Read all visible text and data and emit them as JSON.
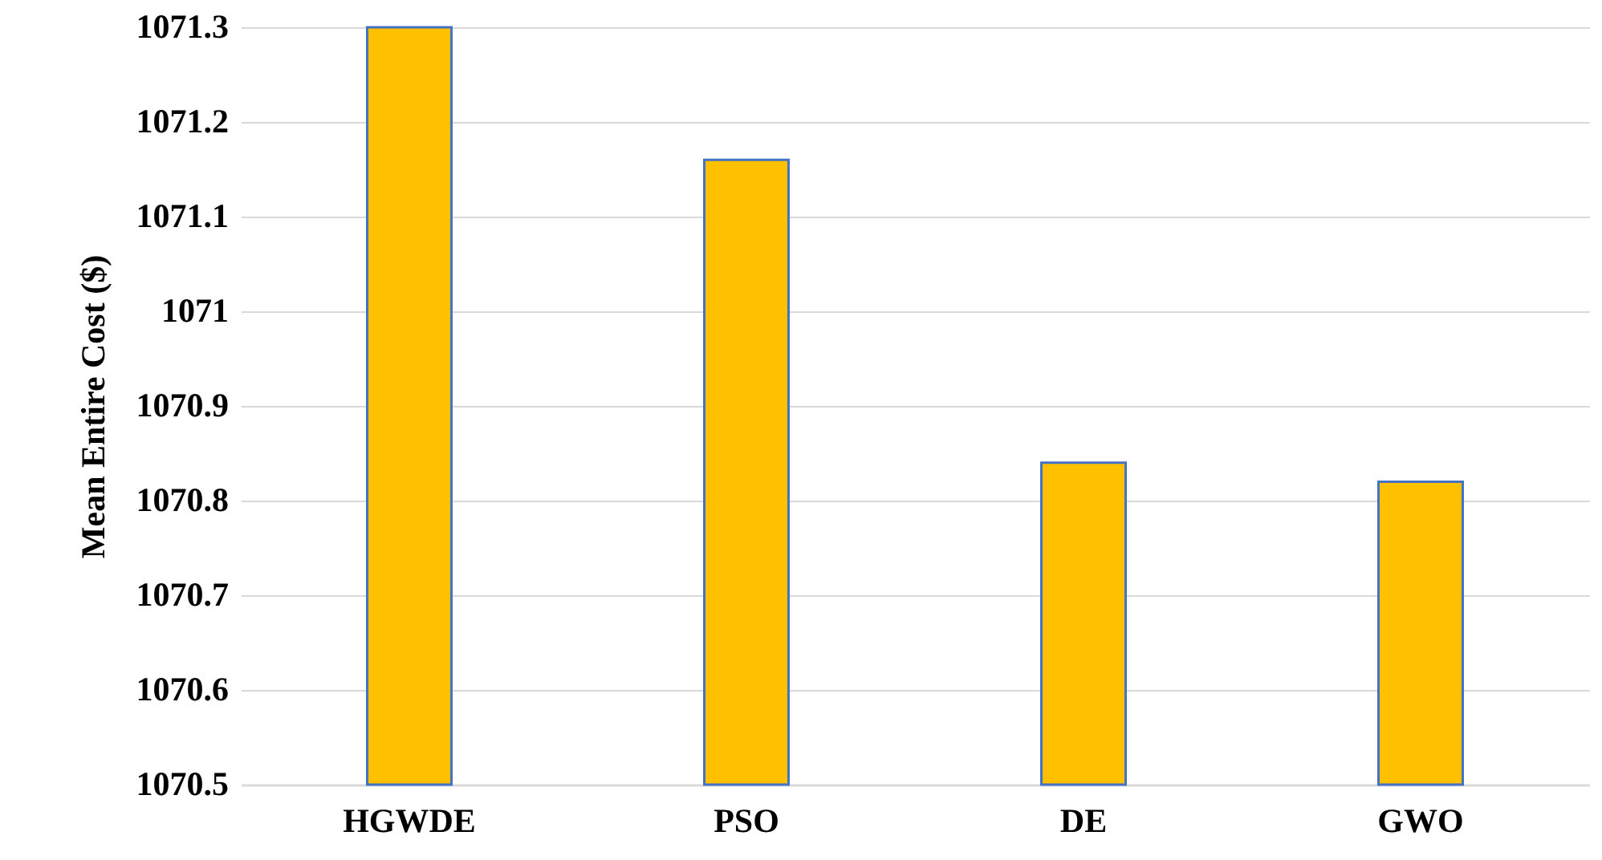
{
  "chart_data": {
    "type": "bar",
    "ylabel": "Mean Entire Cost ($)",
    "categories": [
      "HGWDE",
      "PSO",
      "DE",
      "GWO"
    ],
    "values": [
      1071.3,
      1071.16,
      1070.84,
      1070.82
    ],
    "color": "#ffc000",
    "ylim": [
      1070.5,
      1071.3
    ],
    "yticks": [
      1070.5,
      1070.6,
      1070.7,
      1070.8,
      1070.9,
      1071,
      1071.1,
      1071.2,
      1071.3
    ],
    "grid": "y"
  }
}
